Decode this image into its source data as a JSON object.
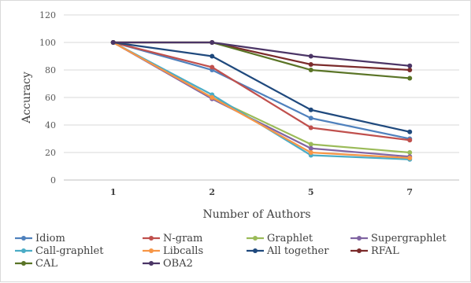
{
  "chart_data": {
    "type": "line",
    "xlabel": "Number of Authors",
    "ylabel": "Accuracy",
    "categories": [
      "1",
      "2",
      "5",
      "7"
    ],
    "ylim": [
      0,
      120
    ],
    "yticks": [
      0,
      20,
      40,
      60,
      80,
      100,
      120
    ],
    "grid": true,
    "legend_position": "bottom",
    "series": [
      {
        "name": "Idiom",
        "color": "#4f81bd",
        "values": [
          100,
          80,
          45,
          30
        ]
      },
      {
        "name": "N-gram",
        "color": "#c0504d",
        "values": [
          100,
          82,
          38,
          29
        ]
      },
      {
        "name": "Graphlet",
        "color": "#9bbb59",
        "values": [
          100,
          60,
          26,
          20
        ]
      },
      {
        "name": "Supergraphlet",
        "color": "#8064a2",
        "values": [
          100,
          59,
          23,
          17
        ]
      },
      {
        "name": "Call-graphlet",
        "color": "#4bacc6",
        "values": [
          100,
          62,
          18,
          15
        ]
      },
      {
        "name": "Libcalls",
        "color": "#f79646",
        "values": [
          100,
          60,
          20,
          16
        ]
      },
      {
        "name": "All together",
        "color": "#1f497d",
        "values": [
          100,
          90,
          51,
          35
        ]
      },
      {
        "name": "RFAL",
        "color": "#7b2b2b",
        "values": [
          100,
          100,
          84,
          80
        ]
      },
      {
        "name": "CAL",
        "color": "#5a7426",
        "values": [
          100,
          100,
          80,
          74
        ]
      },
      {
        "name": "OBA2",
        "color": "#4b3566",
        "values": [
          100,
          100,
          90,
          83
        ]
      }
    ]
  }
}
